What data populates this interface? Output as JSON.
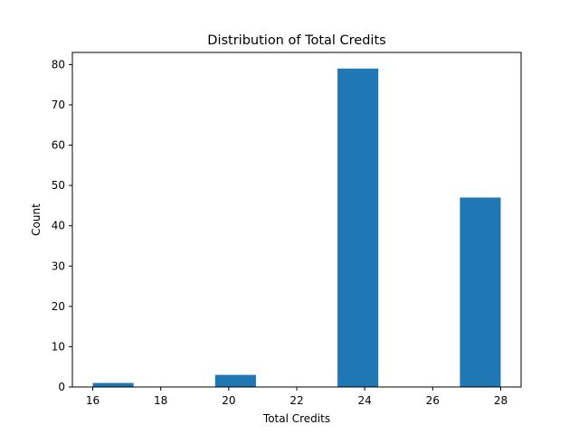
{
  "chart_data": {
    "type": "bar",
    "subtype": "histogram",
    "title": "Distribution of Total Credits",
    "xlabel": "Total Credits",
    "ylabel": "Count",
    "xlim": [
      15.4,
      28.6
    ],
    "ylim": [
      0,
      83
    ],
    "xticks": [
      16,
      18,
      20,
      22,
      24,
      26,
      28
    ],
    "yticks": [
      0,
      10,
      20,
      30,
      40,
      50,
      60,
      70,
      80
    ],
    "bin_edges": [
      16.0,
      17.2,
      18.4,
      19.6,
      20.8,
      22.0,
      23.2,
      24.4,
      25.6,
      26.8,
      28.0
    ],
    "values": [
      1,
      0,
      0,
      3,
      0,
      0,
      79,
      0,
      0,
      47
    ],
    "grid": false,
    "bar_color": "#1f77b4"
  }
}
